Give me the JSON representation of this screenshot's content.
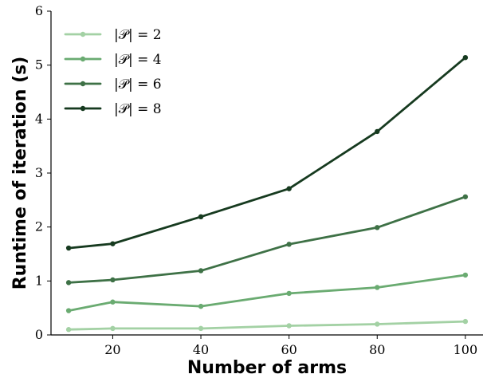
{
  "chart_data": {
    "type": "line",
    "xlabel": "Number of arms",
    "ylabel": "Runtime of iteration (s)",
    "xlim": [
      6,
      104
    ],
    "ylim": [
      0,
      6
    ],
    "xticks": [
      20,
      40,
      60,
      80,
      100
    ],
    "yticks": [
      0,
      1,
      2,
      3,
      4,
      5,
      6
    ],
    "xtick_labels": [
      "20",
      "40",
      "60",
      "80",
      "100"
    ],
    "ytick_labels": [
      "0",
      "1",
      "2",
      "3",
      "4",
      "5",
      "6"
    ],
    "x": [
      10,
      20,
      40,
      60,
      80,
      100
    ],
    "legend_position": "top-left",
    "grid": false,
    "series": [
      {
        "name": "|𝒫| = 2",
        "color": "#a3d1a4",
        "values": [
          0.1,
          0.12,
          0.12,
          0.17,
          0.2,
          0.25
        ]
      },
      {
        "name": "|𝒫| = 4",
        "color": "#6aab71",
        "values": [
          0.45,
          0.61,
          0.53,
          0.77,
          0.88,
          1.11
        ]
      },
      {
        "name": "|𝒫| = 6",
        "color": "#3e7146",
        "values": [
          0.97,
          1.02,
          1.19,
          1.68,
          1.99,
          2.56
        ]
      },
      {
        "name": "|𝒫| = 8",
        "color": "#163a1f",
        "values": [
          1.61,
          1.69,
          2.19,
          2.71,
          3.77,
          5.14
        ]
      }
    ]
  }
}
